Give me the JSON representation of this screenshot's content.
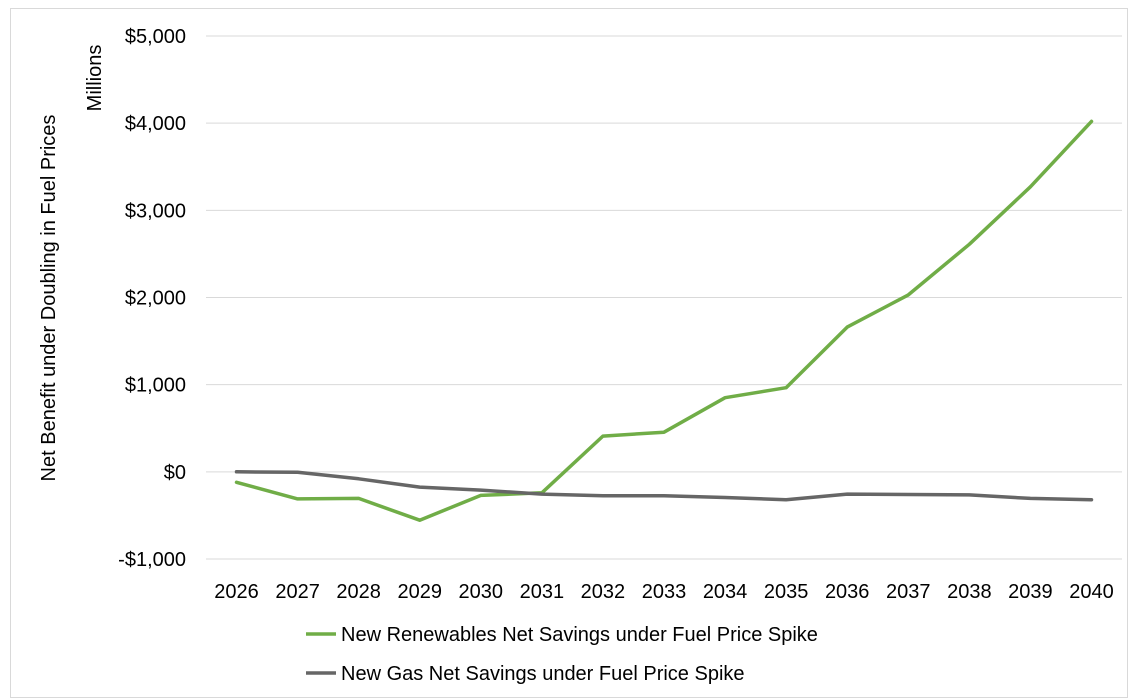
{
  "chart_data": {
    "type": "line",
    "categories": [
      "2026",
      "2027",
      "2028",
      "2029",
      "2030",
      "2031",
      "2032",
      "2033",
      "2034",
      "2035",
      "2036",
      "2037",
      "2038",
      "2039",
      "2040"
    ],
    "ylabel": "Net Benefit under Doubling in Fuel Prices",
    "yunit_label": "Millions",
    "ylim": [
      -1000,
      5000
    ],
    "yticks": [
      5000,
      4000,
      3000,
      2000,
      1000,
      0,
      -1000
    ],
    "ytick_labels": [
      "$5,000",
      "$4,000",
      "$3,000",
      "$2,000",
      "$1,000",
      "$0",
      "-$1,000"
    ],
    "grid": true,
    "legend_position": "bottom",
    "series": [
      {
        "name": "New Renewables Net Savings under Fuel Price Spike",
        "color": "#70ad47",
        "values": [
          -120,
          -310,
          -305,
          -555,
          -270,
          -240,
          410,
          455,
          850,
          965,
          1660,
          2030,
          2610,
          3270,
          4020
        ]
      },
      {
        "name": "New Gas Net Savings under Fuel Price Spike",
        "color": "#666666",
        "values": [
          0,
          -5,
          -80,
          -175,
          -210,
          -255,
          -275,
          -275,
          -295,
          -320,
          -255,
          -260,
          -265,
          -305,
          -320
        ]
      }
    ]
  }
}
